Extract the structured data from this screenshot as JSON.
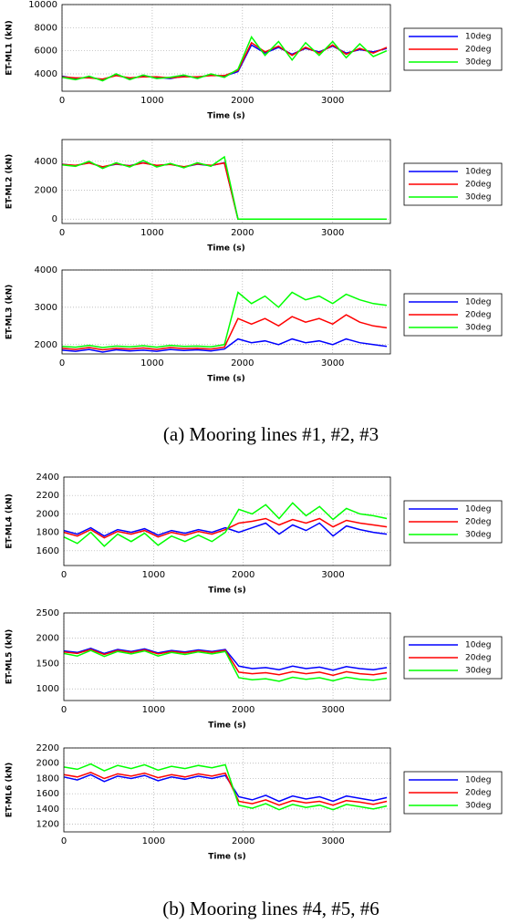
{
  "figure_captions": [
    "(a) Mooring lines #1, #2, #3",
    "(b) Mooring lines #4, #5, #6"
  ],
  "chart_data": [
    {
      "type": "line",
      "y_label": "ET-ML1 (kN)",
      "x_label": "Time (s)",
      "x": [
        0,
        150,
        300,
        450,
        600,
        750,
        900,
        1050,
        1200,
        1350,
        1500,
        1650,
        1800,
        1950,
        2100,
        2250,
        2400,
        2550,
        2700,
        2850,
        3000,
        3150,
        3300,
        3450,
        3600
      ],
      "xlim": [
        0,
        3640
      ],
      "xticks": [
        0,
        1000,
        2000,
        3000
      ],
      "ylim": [
        2500,
        10000
      ],
      "yticks": [
        4000,
        6000,
        8000,
        10000
      ],
      "grid": true,
      "series": [
        {
          "name": "10deg",
          "color": "#0000ff",
          "values": [
            3800,
            3600,
            3700,
            3500,
            3900,
            3600,
            3800,
            3700,
            3600,
            3800,
            3700,
            3900,
            3800,
            4200,
            6500,
            5800,
            6300,
            5700,
            6200,
            5900,
            6400,
            5800,
            6100,
            5900,
            6200
          ]
        },
        {
          "name": "20deg",
          "color": "#ff0000",
          "values": [
            3750,
            3650,
            3650,
            3550,
            3850,
            3650,
            3750,
            3750,
            3650,
            3750,
            3750,
            3850,
            3850,
            4300,
            6700,
            5900,
            6400,
            5600,
            6300,
            5800,
            6500,
            5700,
            6200,
            5800,
            6300
          ]
        },
        {
          "name": "30deg",
          "color": "#00ff00",
          "values": [
            3700,
            3500,
            3800,
            3400,
            4000,
            3500,
            3900,
            3600,
            3700,
            3900,
            3600,
            4000,
            3700,
            4400,
            7200,
            5600,
            6800,
            5200,
            6700,
            5600,
            6800,
            5400,
            6600,
            5500,
            6000
          ]
        }
      ]
    },
    {
      "type": "line",
      "y_label": "ET-ML2 (kN)",
      "x_label": "Time (s)",
      "x": [
        0,
        150,
        300,
        450,
        600,
        750,
        900,
        1050,
        1200,
        1350,
        1500,
        1650,
        1800,
        1950,
        2100,
        2250,
        2400,
        2550,
        2700,
        2850,
        3000,
        3150,
        3300,
        3450,
        3600
      ],
      "xlim": [
        0,
        3640
      ],
      "xticks": [
        0,
        1000,
        2000,
        3000
      ],
      "ylim": [
        -300,
        5500
      ],
      "yticks": [
        0,
        2000,
        4000
      ],
      "grid": true,
      "series": [
        {
          "name": "10deg",
          "color": "#0000ff",
          "values": [
            3800,
            3700,
            3900,
            3600,
            3800,
            3700,
            3900,
            3700,
            3800,
            3600,
            3800,
            3700,
            3900,
            0,
            0,
            0,
            0,
            0,
            0,
            0,
            0,
            0,
            0,
            0,
            0
          ]
        },
        {
          "name": "20deg",
          "color": "#ff0000",
          "values": [
            3780,
            3720,
            3880,
            3620,
            3820,
            3680,
            3880,
            3720,
            3780,
            3620,
            3820,
            3720,
            3880,
            0,
            0,
            0,
            0,
            0,
            0,
            0,
            0,
            0,
            0,
            0,
            0
          ]
        },
        {
          "name": "30deg",
          "color": "#00ff00",
          "values": [
            3750,
            3650,
            4000,
            3500,
            3900,
            3600,
            4050,
            3600,
            3850,
            3550,
            3900,
            3650,
            4300,
            0,
            0,
            0,
            0,
            0,
            0,
            0,
            0,
            0,
            0,
            0,
            0
          ]
        }
      ]
    },
    {
      "type": "line",
      "y_label": "ET-ML3 (kN)",
      "x_label": "Time (s)",
      "x": [
        0,
        150,
        300,
        450,
        600,
        750,
        900,
        1050,
        1200,
        1350,
        1500,
        1650,
        1800,
        1950,
        2100,
        2250,
        2400,
        2550,
        2700,
        2850,
        3000,
        3150,
        3300,
        3450,
        3600
      ],
      "xlim": [
        0,
        3640
      ],
      "xticks": [
        0,
        1000,
        2000,
        3000
      ],
      "ylim": [
        1750,
        4000
      ],
      "yticks": [
        2000,
        3000,
        4000
      ],
      "grid": true,
      "series": [
        {
          "name": "10deg",
          "color": "#0000ff",
          "values": [
            1850,
            1820,
            1870,
            1800,
            1860,
            1830,
            1850,
            1820,
            1870,
            1840,
            1860,
            1830,
            1880,
            2150,
            2050,
            2100,
            2000,
            2150,
            2050,
            2100,
            2000,
            2150,
            2050,
            2000,
            1950
          ]
        },
        {
          "name": "20deg",
          "color": "#ff0000",
          "values": [
            1900,
            1870,
            1920,
            1860,
            1900,
            1880,
            1910,
            1870,
            1920,
            1890,
            1900,
            1880,
            1930,
            2700,
            2550,
            2700,
            2500,
            2750,
            2600,
            2700,
            2550,
            2800,
            2600,
            2500,
            2450
          ]
        },
        {
          "name": "30deg",
          "color": "#00ff00",
          "values": [
            1950,
            1930,
            1980,
            1920,
            1960,
            1940,
            1970,
            1930,
            1980,
            1950,
            1960,
            1940,
            2000,
            3400,
            3100,
            3300,
            3000,
            3400,
            3200,
            3300,
            3100,
            3350,
            3200,
            3100,
            3050
          ]
        }
      ]
    },
    {
      "type": "line",
      "y_label": "ET-ML4 (kN)",
      "x_label": "Time (s)",
      "x": [
        0,
        150,
        300,
        450,
        600,
        750,
        900,
        1050,
        1200,
        1350,
        1500,
        1650,
        1800,
        1950,
        2100,
        2250,
        2400,
        2550,
        2700,
        2850,
        3000,
        3150,
        3300,
        3450,
        3600
      ],
      "xlim": [
        0,
        3640
      ],
      "xticks": [
        0,
        1000,
        2000,
        3000
      ],
      "ylim": [
        1440,
        2400
      ],
      "yticks": [
        1600,
        1800,
        2000,
        2200,
        2400
      ],
      "grid": true,
      "series": [
        {
          "name": "10deg",
          "color": "#0000ff",
          "values": [
            1820,
            1780,
            1850,
            1760,
            1830,
            1800,
            1840,
            1770,
            1820,
            1790,
            1830,
            1800,
            1850,
            1800,
            1850,
            1900,
            1780,
            1880,
            1820,
            1900,
            1760,
            1870,
            1830,
            1800,
            1780
          ]
        },
        {
          "name": "20deg",
          "color": "#ff0000",
          "values": [
            1800,
            1760,
            1830,
            1740,
            1810,
            1780,
            1820,
            1750,
            1800,
            1770,
            1810,
            1780,
            1830,
            1900,
            1920,
            1950,
            1880,
            1940,
            1900,
            1950,
            1860,
            1930,
            1900,
            1880,
            1860
          ]
        },
        {
          "name": "30deg",
          "color": "#00ff00",
          "values": [
            1750,
            1680,
            1800,
            1650,
            1780,
            1700,
            1790,
            1660,
            1760,
            1700,
            1770,
            1700,
            1800,
            2050,
            2000,
            2100,
            1950,
            2120,
            1980,
            2080,
            1940,
            2060,
            2000,
            1980,
            1950
          ]
        }
      ]
    },
    {
      "type": "line",
      "y_label": "ET-ML5 (kN)",
      "x_label": "Time (s)",
      "x": [
        0,
        150,
        300,
        450,
        600,
        750,
        900,
        1050,
        1200,
        1350,
        1500,
        1650,
        1800,
        1950,
        2100,
        2250,
        2400,
        2550,
        2700,
        2850,
        3000,
        3150,
        3300,
        3450,
        3600
      ],
      "xlim": [
        0,
        3640
      ],
      "xticks": [
        0,
        1000,
        2000,
        3000
      ],
      "ylim": [
        770,
        2500
      ],
      "yticks": [
        1000,
        1500,
        2000,
        2500
      ],
      "grid": true,
      "series": [
        {
          "name": "10deg",
          "color": "#0000ff",
          "values": [
            1750,
            1720,
            1800,
            1700,
            1780,
            1740,
            1790,
            1710,
            1760,
            1730,
            1770,
            1740,
            1780,
            1450,
            1400,
            1420,
            1380,
            1450,
            1400,
            1430,
            1370,
            1440,
            1400,
            1380,
            1420
          ]
        },
        {
          "name": "20deg",
          "color": "#ff0000",
          "values": [
            1730,
            1700,
            1780,
            1680,
            1760,
            1720,
            1770,
            1690,
            1740,
            1710,
            1750,
            1720,
            1760,
            1330,
            1300,
            1320,
            1280,
            1340,
            1300,
            1330,
            1270,
            1340,
            1300,
            1280,
            1320
          ]
        },
        {
          "name": "30deg",
          "color": "#00ff00",
          "values": [
            1700,
            1650,
            1760,
            1640,
            1740,
            1690,
            1750,
            1650,
            1720,
            1680,
            1730,
            1690,
            1740,
            1220,
            1180,
            1200,
            1150,
            1230,
            1190,
            1220,
            1160,
            1230,
            1190,
            1170,
            1210
          ]
        }
      ]
    },
    {
      "type": "line",
      "y_label": "ET-ML6 (kN)",
      "x_label": "Time (s)",
      "x": [
        0,
        150,
        300,
        450,
        600,
        750,
        900,
        1050,
        1200,
        1350,
        1500,
        1650,
        1800,
        1950,
        2100,
        2250,
        2400,
        2550,
        2700,
        2850,
        3000,
        3150,
        3300,
        3450,
        3600
      ],
      "xlim": [
        0,
        3640
      ],
      "xticks": [
        0,
        1000,
        2000,
        3000
      ],
      "ylim": [
        1100,
        2200
      ],
      "yticks": [
        1200,
        1400,
        1600,
        1800,
        2000,
        2200
      ],
      "grid": true,
      "series": [
        {
          "name": "10deg",
          "color": "#0000ff",
          "values": [
            1820,
            1780,
            1850,
            1760,
            1830,
            1800,
            1840,
            1770,
            1820,
            1790,
            1830,
            1800,
            1840,
            1560,
            1520,
            1580,
            1500,
            1570,
            1530,
            1560,
            1500,
            1570,
            1540,
            1510,
            1550
          ]
        },
        {
          "name": "20deg",
          "color": "#ff0000",
          "values": [
            1850,
            1820,
            1880,
            1800,
            1860,
            1830,
            1870,
            1810,
            1850,
            1820,
            1860,
            1830,
            1870,
            1500,
            1470,
            1520,
            1450,
            1510,
            1480,
            1500,
            1450,
            1510,
            1490,
            1460,
            1500
          ]
        },
        {
          "name": "30deg",
          "color": "#00ff00",
          "values": [
            1950,
            1920,
            1990,
            1900,
            1970,
            1930,
            1980,
            1910,
            1960,
            1930,
            1970,
            1940,
            1980,
            1450,
            1410,
            1470,
            1390,
            1460,
            1420,
            1450,
            1390,
            1460,
            1430,
            1400,
            1440
          ]
        }
      ]
    }
  ]
}
